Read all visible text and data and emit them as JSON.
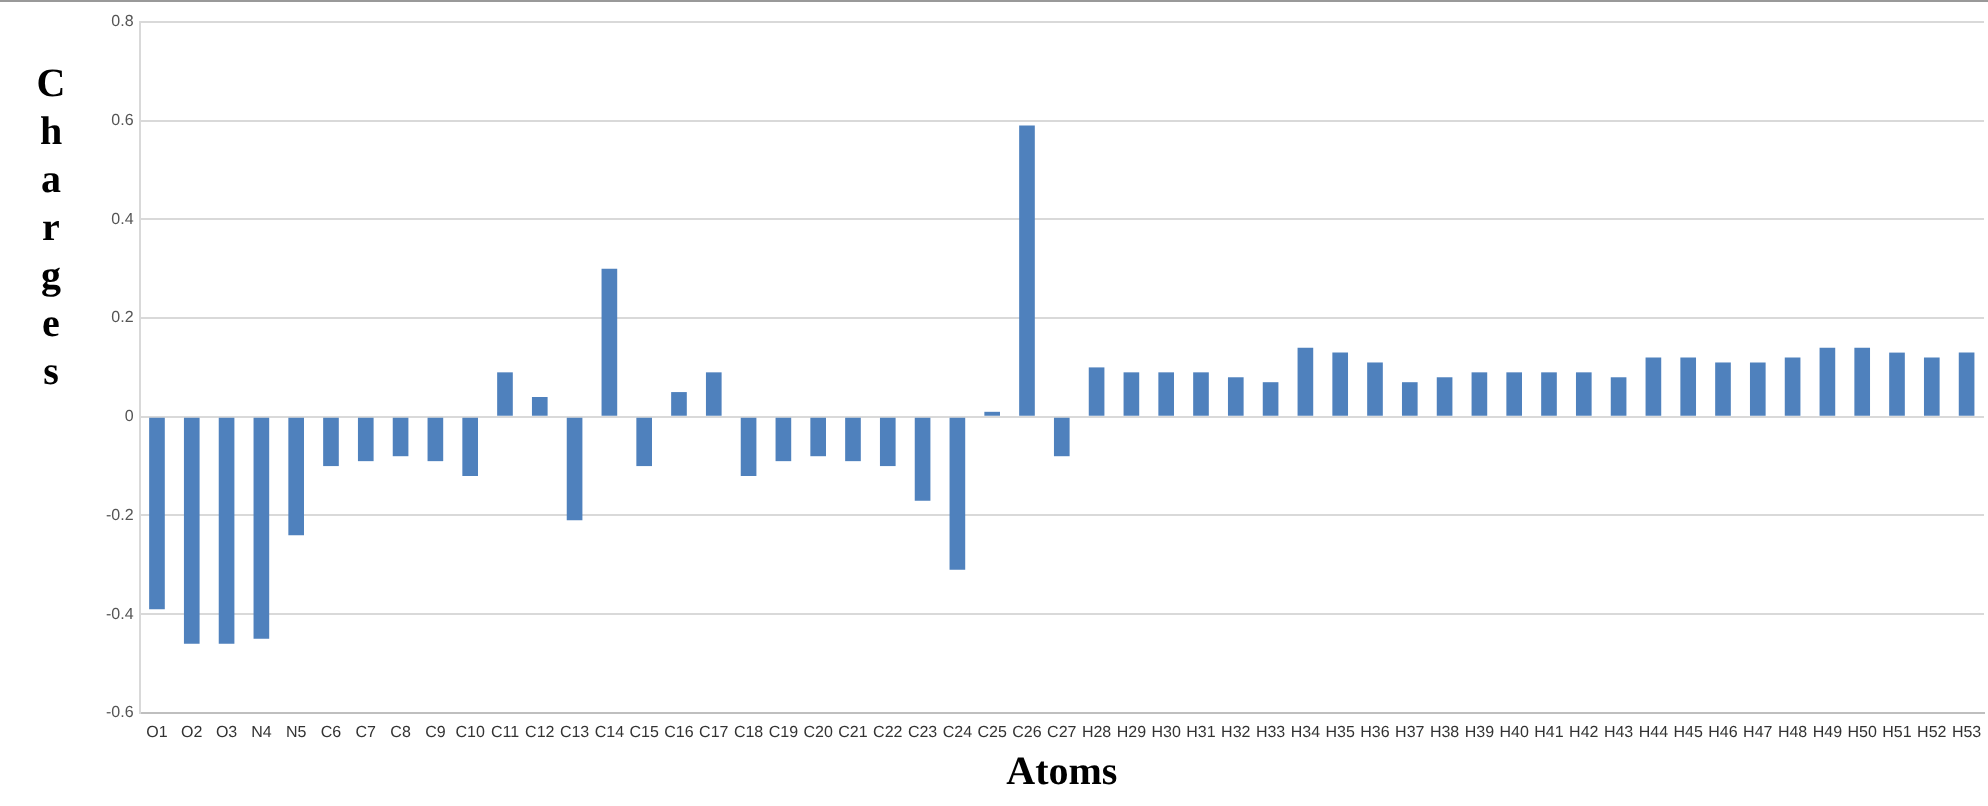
{
  "chart_data": {
    "type": "bar",
    "xlabel": "Atoms",
    "ylabel": "Charges",
    "categories": [
      "O1",
      "O2",
      "O3",
      "N4",
      "N5",
      "C6",
      "C7",
      "C8",
      "C9",
      "C10",
      "C11",
      "C12",
      "C13",
      "C14",
      "C15",
      "C16",
      "C17",
      "C18",
      "C19",
      "C20",
      "C21",
      "C22",
      "C23",
      "C24",
      "C25",
      "C26",
      "C27",
      "H28",
      "H29",
      "H30",
      "H31",
      "H32",
      "H33",
      "H34",
      "H35",
      "H36",
      "H37",
      "H38",
      "H39",
      "H40",
      "H41",
      "H42",
      "H43",
      "H44",
      "H45",
      "H46",
      "H47",
      "H48",
      "H49",
      "H50",
      "H51",
      "H52",
      "H53"
    ],
    "values": [
      -0.39,
      -0.46,
      -0.46,
      -0.45,
      -0.24,
      -0.1,
      -0.09,
      -0.08,
      -0.09,
      -0.12,
      0.09,
      0.04,
      -0.21,
      0.3,
      -0.1,
      0.05,
      0.09,
      -0.12,
      -0.09,
      -0.08,
      -0.09,
      -0.1,
      -0.17,
      -0.31,
      0.01,
      0.59,
      -0.08,
      0.1,
      0.09,
      0.09,
      0.09,
      0.08,
      0.07,
      0.14,
      0.13,
      0.11,
      0.07,
      0.08,
      0.09,
      0.09,
      0.09,
      0.09,
      0.08,
      0.12,
      0.12,
      0.11,
      0.11,
      0.12,
      0.14,
      0.14,
      0.13,
      0.12,
      0.13
    ],
    "color": "#4f81bd",
    "ylim": [
      -0.6,
      0.8
    ],
    "yticks": [
      -0.6,
      -0.4,
      -0.2,
      0,
      0.2,
      0.4,
      0.6,
      0.8
    ],
    "grid": "y"
  }
}
